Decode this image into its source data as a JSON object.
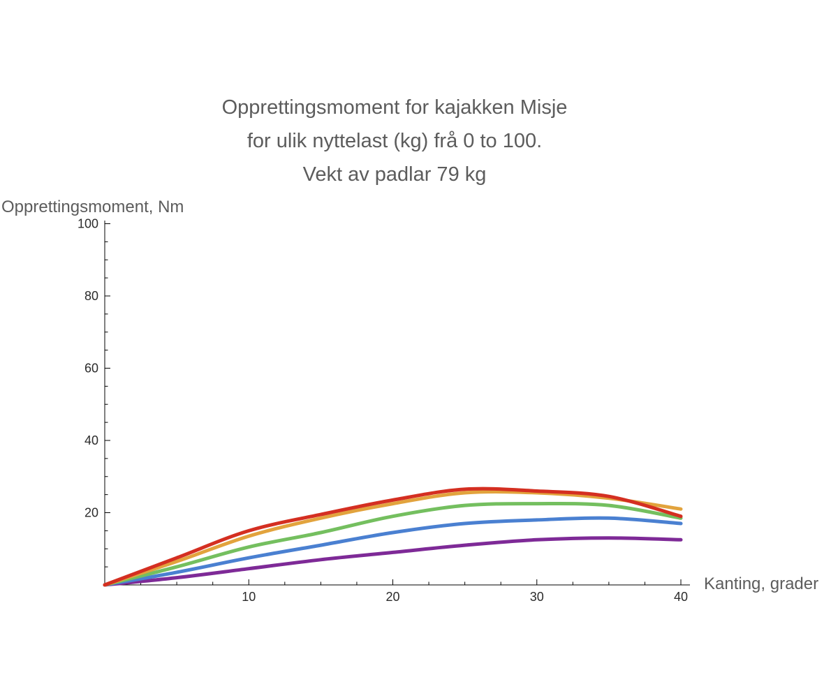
{
  "chart_data": {
    "type": "line",
    "title_lines": [
      "Opprettingsmoment for kajakken Misje",
      "for ulik nyttelast (kg) frå 0 to 100.",
      "Vekt av padlar 79 kg"
    ],
    "xlabel": "Kanting, grader",
    "ylabel": "Opprettingsmoment, Nm",
    "xlim": [
      0,
      40
    ],
    "ylim": [
      0,
      100
    ],
    "xticks": [
      10,
      20,
      30,
      40
    ],
    "yticks": [
      20,
      40,
      60,
      80,
      100
    ],
    "x_minor_step": 2.5,
    "y_minor_step": 5,
    "grid": false,
    "legend": "none",
    "x": [
      0,
      5,
      10,
      15,
      20,
      25,
      30,
      35,
      40
    ],
    "series": [
      {
        "name": "purple",
        "color": "#7e2a97",
        "values": [
          0,
          2.0,
          4.5,
          7.0,
          9.0,
          11.0,
          12.5,
          13.0,
          12.5
        ]
      },
      {
        "name": "blue",
        "color": "#4a80d1",
        "values": [
          0,
          3.5,
          7.5,
          11.0,
          14.5,
          17.0,
          18.0,
          18.5,
          17.0
        ]
      },
      {
        "name": "green",
        "color": "#74bf5f",
        "values": [
          0,
          5.0,
          10.5,
          14.5,
          19.0,
          22.0,
          22.5,
          22.0,
          18.5
        ]
      },
      {
        "name": "orange",
        "color": "#e2a33d",
        "values": [
          0,
          6.5,
          13.5,
          18.5,
          22.5,
          25.5,
          25.5,
          24.0,
          21.0
        ]
      },
      {
        "name": "red",
        "color": "#d42f21",
        "values": [
          0,
          7.5,
          15.0,
          19.5,
          23.5,
          26.5,
          26.0,
          24.5,
          19.0
        ]
      }
    ],
    "axis_color": "#000000",
    "tick_label_color": "#2b2b2b"
  }
}
